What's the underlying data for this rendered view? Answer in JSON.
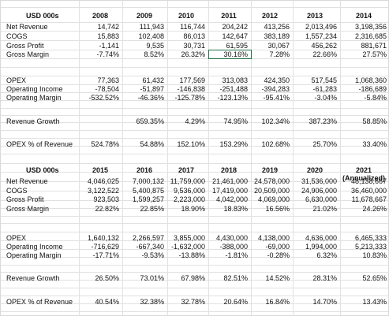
{
  "grid_color": "#e1e1e1",
  "selection_color": "#1f7145",
  "table1": {
    "title": "USD 000s",
    "years": [
      "2008",
      "2009",
      "2010",
      "2011",
      "2012",
      "2013",
      "2014"
    ],
    "rows": [
      {
        "label": "Net Revenue",
        "values": [
          "14,742",
          "111,943",
          "116,744",
          "204,242",
          "413,256",
          "2,013,496",
          "3,198,356"
        ]
      },
      {
        "label": "COGS",
        "values": [
          "15,883",
          "102,408",
          "86,013",
          "142,647",
          "383,189",
          "1,557,234",
          "2,316,685"
        ]
      },
      {
        "label": "Gross Profit",
        "values": [
          "-1,141",
          "9,535",
          "30,731",
          "61,595",
          "30,067",
          "456,262",
          "881,671"
        ]
      },
      {
        "label": "Gross Margin",
        "values": [
          "-7.74%",
          "8.52%",
          "26.32%",
          "30.16%",
          "7.28%",
          "22.66%",
          "27.57%"
        ]
      },
      {
        "label": "OPEX",
        "values": [
          "77,363",
          "61,432",
          "177,569",
          "313,083",
          "424,350",
          "517,545",
          "1,068,360"
        ]
      },
      {
        "label": "Operating Income",
        "values": [
          "-78,504",
          "-51,897",
          "-146,838",
          "-251,488",
          "-394,283",
          "-61,283",
          "-186,689"
        ]
      },
      {
        "label": "Operating Margin",
        "values": [
          "-532.52%",
          "-46.36%",
          "-125.78%",
          "-123.13%",
          "-95.41%",
          "-3.04%",
          "-5.84%"
        ]
      },
      {
        "label": "Revenue Growth",
        "values": [
          "",
          "659.35%",
          "4.29%",
          "74.95%",
          "102.34%",
          "387.23%",
          "58.85%"
        ]
      },
      {
        "label": "OPEX % of Revenue",
        "values": [
          "524.78%",
          "54.88%",
          "152.10%",
          "153.29%",
          "102.68%",
          "25.70%",
          "33.40%"
        ]
      }
    ]
  },
  "table2": {
    "title": "USD 000s",
    "years": [
      "2015",
      "2016",
      "2017",
      "2018",
      "2019",
      "2020",
      "2021"
    ],
    "last_year_note": "(Annualized)",
    "rows": [
      {
        "label": "Net Revenue",
        "values": [
          "4,046,025",
          "7,000,132",
          "11,759,000",
          "21,461,000",
          "24,578,000",
          "31,536,000",
          "48,138,667"
        ]
      },
      {
        "label": "COGS",
        "values": [
          "3,122,522",
          "5,400,875",
          "9,536,000",
          "17,419,000",
          "20,509,000",
          "24,906,000",
          "36,460,000"
        ]
      },
      {
        "label": "Gross Profit",
        "values": [
          "923,503",
          "1,599,257",
          "2,223,000",
          "4,042,000",
          "4,069,000",
          "6,630,000",
          "11,678,667"
        ]
      },
      {
        "label": "Gross Margin",
        "values": [
          "22.82%",
          "22.85%",
          "18.90%",
          "18.83%",
          "16.56%",
          "21.02%",
          "24.26%"
        ]
      },
      {
        "label": "OPEX",
        "values": [
          "1,640,132",
          "2,266,597",
          "3,855,000",
          "4,430,000",
          "4,138,000",
          "4,636,000",
          "6,465,333"
        ]
      },
      {
        "label": "Operating Income",
        "values": [
          "-716,629",
          "-667,340",
          "-1,632,000",
          "-388,000",
          "-69,000",
          "1,994,000",
          "5,213,333"
        ]
      },
      {
        "label": "Operating Margin",
        "values": [
          "-17.71%",
          "-9.53%",
          "-13.88%",
          "-1.81%",
          "-0.28%",
          "6.32%",
          "10.83%"
        ]
      },
      {
        "label": "Revenue Growth",
        "values": [
          "26.50%",
          "73.01%",
          "67.98%",
          "82.51%",
          "14.52%",
          "28.31%",
          "52.65%"
        ]
      },
      {
        "label": "OPEX % of Revenue",
        "values": [
          "40.54%",
          "32.38%",
          "32.78%",
          "20.64%",
          "16.84%",
          "14.70%",
          "13.43%"
        ]
      }
    ]
  }
}
